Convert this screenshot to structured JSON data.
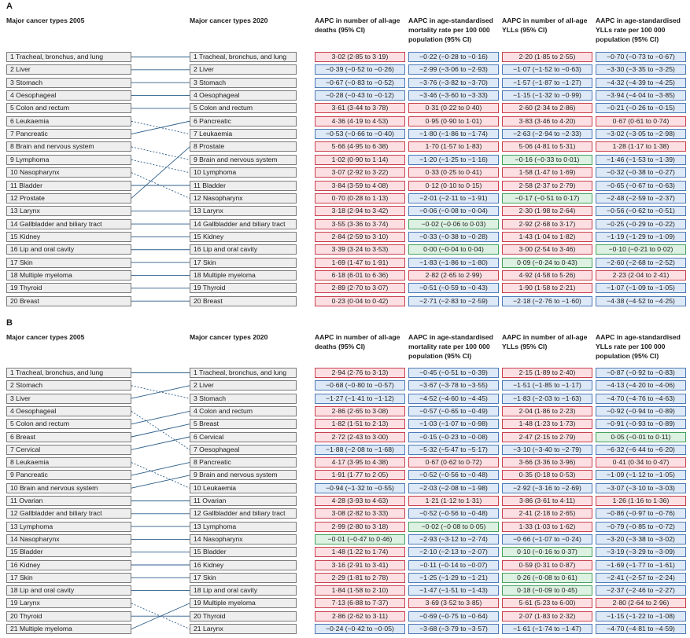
{
  "colors": {
    "red": "#fbdfe2",
    "blue": "#dde9f7",
    "green": "#dcf1e1"
  },
  "panels": [
    {
      "letter": "A",
      "left_header": "Major cancer types 2005",
      "mid_header": "Major cancer types 2020",
      "col_headers": [
        "AAPC in number of all-age deaths (95% CI)",
        "AAPC in age-standardised mortality rate per 100 000 population (95% CI)",
        "AAPC in number of all-age YLLs (95% CI)",
        "AAPC in age-standardised YLLs rate per 100 000 population (95% CI)"
      ],
      "left": [
        "1 Tracheal, bronchus, and lung",
        "2 Liver",
        "3 Stomach",
        "4 Oesophageal",
        "5 Colon and rectum",
        "6 Leukaemia",
        "7 Pancreatic",
        "8 Brain and nervous system",
        "9 Lymphoma",
        "10 Nasopharynx",
        "11 Bladder",
        "12 Prostate",
        "13 Larynx",
        "14 Gallbladder and biliary tract",
        "15 Kidney",
        "16 Lip and oral cavity",
        "17 Skin",
        "18 Multiple myeloma",
        "19 Thyroid",
        "20 Breast"
      ],
      "right": [
        "1 Tracheal, bronchus, and lung",
        "2 Liver",
        "3 Stomach",
        "4 Oesophageal",
        "5 Colon and rectum",
        "6 Pancreatic",
        "7 Leukaemia",
        "8 Prostate",
        "9 Brain and nervous system",
        "10 Lymphoma",
        "11 Bladder",
        "12 Nasopharynx",
        "13 Larynx",
        "14 Gallbladder and biliary tract",
        "15 Kidney",
        "16 Lip and oral cavity",
        "17 Skin",
        "18 Multiple myeloma",
        "19 Thyroid",
        "20 Breast"
      ],
      "links": [
        [
          1,
          1
        ],
        [
          2,
          2
        ],
        [
          3,
          3
        ],
        [
          4,
          4
        ],
        [
          5,
          5
        ],
        [
          6,
          7
        ],
        [
          7,
          6
        ],
        [
          8,
          9
        ],
        [
          9,
          10
        ],
        [
          10,
          12
        ],
        [
          11,
          11
        ],
        [
          12,
          8
        ],
        [
          13,
          13
        ],
        [
          14,
          14
        ],
        [
          15,
          15
        ],
        [
          16,
          16
        ],
        [
          17,
          17
        ],
        [
          18,
          18
        ],
        [
          19,
          19
        ],
        [
          20,
          20
        ]
      ],
      "rows": [
        [
          [
            "3·02 (2·85 to 3·19)",
            "r"
          ],
          [
            "−0·22 (−0·28 to −0·16)",
            "b"
          ],
          [
            "2·20 (1·85 to 2·55)",
            "r"
          ],
          [
            "−0·70 (−0·73 to −0·67)",
            "b"
          ]
        ],
        [
          [
            "−0·39 (−0·52 to −0·26)",
            "b"
          ],
          [
            "−2·99 (−3·06 to −2·93)",
            "b"
          ],
          [
            "−1·07 (−1·52 to −0·63)",
            "b"
          ],
          [
            "−3·30 (−3·35 to −3·25)",
            "b"
          ]
        ],
        [
          [
            "−0·67 (−0·83 to −0·52)",
            "b"
          ],
          [
            "−3·76 (−3·82 to −3·70)",
            "b"
          ],
          [
            "−1·57 (−1·87 to −1·27)",
            "b"
          ],
          [
            "−4·32 (−4·39 to −4·25)",
            "b"
          ]
        ],
        [
          [
            "−0·28 (−0·43 to −0·12)",
            "b"
          ],
          [
            "−3·46 (−3·60 to −3·33)",
            "b"
          ],
          [
            "−1·15 (−1·32 to −0·99)",
            "b"
          ],
          [
            "−3·94 (−4·04 to −3·85)",
            "b"
          ]
        ],
        [
          [
            "3·61 (3·44 to 3·78)",
            "r"
          ],
          [
            "0·31 (0·22 to 0·40)",
            "r"
          ],
          [
            "2·60 (2·34 to 2·86)",
            "r"
          ],
          [
            "−0·21 (−0·26 to −0·15)",
            "b"
          ]
        ],
        [
          [
            "4·36 (4·19 to 4·53)",
            "r"
          ],
          [
            "0·95 (0·90 to 1·01)",
            "r"
          ],
          [
            "3·83 (3·46 to 4·20)",
            "r"
          ],
          [
            "0·67 (0·61 to 0·74)",
            "r"
          ]
        ],
        [
          [
            "−0·53 (−0·66 to −0·40)",
            "b"
          ],
          [
            "−1·80 (−1·86 to −1·74)",
            "b"
          ],
          [
            "−2·63 (−2·94 to −2·33)",
            "b"
          ],
          [
            "−3·02 (−3·05 to −2·98)",
            "b"
          ]
        ],
        [
          [
            "5·66 (4·95 to 6·38)",
            "r"
          ],
          [
            "1·70 (1·57 to 1·83)",
            "r"
          ],
          [
            "5·06 (4·81 to 5·31)",
            "r"
          ],
          [
            "1·28 (1·17 to 1·38)",
            "r"
          ]
        ],
        [
          [
            "1·02 (0·90 to 1·14)",
            "r"
          ],
          [
            "−1·20 (−1·25 to −1·16)",
            "b"
          ],
          [
            "−0·16 (−0·33 to 0·01)",
            "g"
          ],
          [
            "−1·46 (−1·53 to −1·39)",
            "b"
          ]
        ],
        [
          [
            "3·07 (2·92 to 3·22)",
            "r"
          ],
          [
            "0·33 (0·25 to 0·41)",
            "r"
          ],
          [
            "1·58 (1·47 to 1·69)",
            "r"
          ],
          [
            "−0·32 (−0·38 to −0·27)",
            "b"
          ]
        ],
        [
          [
            "3·84 (3·59 to 4·08)",
            "r"
          ],
          [
            "0·12 (0·10 to 0·15)",
            "r"
          ],
          [
            "2·58 (2·37 to 2·79)",
            "r"
          ],
          [
            "−0·65 (−0·67 to −0·63)",
            "b"
          ]
        ],
        [
          [
            "0·70 (0·28 to 1·13)",
            "r"
          ],
          [
            "−2·01 (−2·11 to −1·91)",
            "b"
          ],
          [
            "−0·17 (−0·51 to 0·17)",
            "g"
          ],
          [
            "−2·48 (−2·59 to −2·37)",
            "b"
          ]
        ],
        [
          [
            "3·18 (2·94 to 3·42)",
            "r"
          ],
          [
            "−0·06 (−0·08 to −0·04)",
            "b"
          ],
          [
            "2·30 (1·98 to 2·64)",
            "r"
          ],
          [
            "−0·56 (−0·62 to −0·51)",
            "b"
          ]
        ],
        [
          [
            "3·55 (3·36 to 3·74)",
            "r"
          ],
          [
            "−0·02 (−0·06 to 0·03)",
            "g"
          ],
          [
            "2·92 (2·68 to 3·17)",
            "r"
          ],
          [
            "−0·25 (−0·29 to −0·22)",
            "b"
          ]
        ],
        [
          [
            "2·84 (2·59 to 3·10)",
            "r"
          ],
          [
            "−0·33 (−0·38 to −0·28)",
            "b"
          ],
          [
            "1·43 (1·04 to 1·82)",
            "r"
          ],
          [
            "−1·19 (−1·29 to −1·09)",
            "b"
          ]
        ],
        [
          [
            "3·39 (3·24 to 3·53)",
            "r"
          ],
          [
            "0·00 (−0·04 to 0·04)",
            "g"
          ],
          [
            "3·00 (2·54 to 3·46)",
            "r"
          ],
          [
            "−0·10 (−0·21 to 0·02)",
            "g"
          ]
        ],
        [
          [
            "1·69 (1·47 to 1·91)",
            "r"
          ],
          [
            "−1·83 (−1·86 to −1·80)",
            "b"
          ],
          [
            "0·09 (−0·24 to 0·43)",
            "g"
          ],
          [
            "−2·60 (−2·68 to −2·52)",
            "b"
          ]
        ],
        [
          [
            "6·18 (6·01 to 6·36)",
            "r"
          ],
          [
            "2·82 (2·65 to 2·99)",
            "r"
          ],
          [
            "4·92 (4·58 to 5·26)",
            "r"
          ],
          [
            "2·23 (2·04 to 2·41)",
            "r"
          ]
        ],
        [
          [
            "2·89 (2·70 to 3·07)",
            "r"
          ],
          [
            "−0·51 (−0·59 to −0·43)",
            "b"
          ],
          [
            "1·90 (1·58 to 2·21)",
            "r"
          ],
          [
            "−1·07 (−1·09 to −1·05)",
            "b"
          ]
        ],
        [
          [
            "0·23 (0·04 to 0·42)",
            "r"
          ],
          [
            "−2·71 (−2·83 to −2·59)",
            "b"
          ],
          [
            "−2·18 (−2·76 to −1·60)",
            "b"
          ],
          [
            "−4·38 (−4·52 to −4·25)",
            "b"
          ]
        ]
      ]
    },
    {
      "letter": "B",
      "left_header": "Major cancer types 2005",
      "mid_header": "Major cancer types 2020",
      "col_headers": [
        "AAPC in number of all-age deaths (95% CI)",
        "AAPC in age-standardised mortality rate per 100 000 population (95% CI)",
        "AAPC in number of all-age YLLs (95% CI)",
        "AAPC in age-standardised YLLs rate per 100 000 population (95% CI)"
      ],
      "left": [
        "1 Tracheal, bronchus, and lung",
        "2 Stomach",
        "3 Liver",
        "4 Oesophageal",
        "5 Colon and rectum",
        "6 Breast",
        "7 Cervical",
        "8 Leukaemia",
        "9 Pancreatic",
        "10 Brain and nervous system",
        "11 Ovarian",
        "12 Gallbladder and biliary tract",
        "13 Lymphoma",
        "14 Nasopharynx",
        "15 Bladder",
        "16 Kidney",
        "17 Skin",
        "18 Lip and oral cavity",
        "19 Larynx",
        "20 Thyroid",
        "21 Multiple myeloma"
      ],
      "right": [
        "1 Tracheal, bronchus, and lung",
        "2 Liver",
        "3 Stomach",
        "4 Colon and rectum",
        "5 Breast",
        "6 Cervical",
        "7 Oesophageal",
        "8 Pancreatic",
        "9 Brain and nervous system",
        "10 Leukaemia",
        "11 Ovarian",
        "12 Gallbladder and biliary tract",
        "13 Lymphoma",
        "14 Nasopharynx",
        "15 Bladder",
        "16 Kidney",
        "17 Skin",
        "18 Lip and oral cavity",
        "19 Multiple myeloma",
        "20 Thyroid",
        "21 Larynx"
      ],
      "links": [
        [
          1,
          1
        ],
        [
          2,
          3
        ],
        [
          3,
          2
        ],
        [
          4,
          7
        ],
        [
          5,
          4
        ],
        [
          6,
          5
        ],
        [
          7,
          6
        ],
        [
          8,
          10
        ],
        [
          9,
          8
        ],
        [
          10,
          9
        ],
        [
          11,
          11
        ],
        [
          12,
          12
        ],
        [
          13,
          13
        ],
        [
          14,
          14
        ],
        [
          15,
          15
        ],
        [
          16,
          16
        ],
        [
          17,
          17
        ],
        [
          18,
          18
        ],
        [
          19,
          21
        ],
        [
          20,
          20
        ],
        [
          21,
          19
        ]
      ],
      "rows": [
        [
          [
            "2·94 (2·76 to 3·13)",
            "r"
          ],
          [
            "−0·45 (−0·51 to −0·39)",
            "b"
          ],
          [
            "2·15 (1·89 to 2·40)",
            "r"
          ],
          [
            "−0·87 (−0·92 to −0·83)",
            "b"
          ]
        ],
        [
          [
            "−0·68 (−0·80 to −0·57)",
            "b"
          ],
          [
            "−3·67 (−3·78 to −3·55)",
            "b"
          ],
          [
            "−1·51 (−1·85 to −1·17)",
            "b"
          ],
          [
            "−4·13 (−4·20 to −4·06)",
            "b"
          ]
        ],
        [
          [
            "−1·27 (−1·41 to −1·12)",
            "b"
          ],
          [
            "−4·52 (−4·60 to −4·45)",
            "b"
          ],
          [
            "−1·83 (−2·03 to −1·63)",
            "b"
          ],
          [
            "−4·70 (−4·76 to −4·63)",
            "b"
          ]
        ],
        [
          [
            "2·86 (2·65 to 3·08)",
            "r"
          ],
          [
            "−0·57 (−0·65 to −0·49)",
            "b"
          ],
          [
            "2·04 (1·86 to 2·23)",
            "r"
          ],
          [
            "−0·92 (−0·94 to −0·89)",
            "b"
          ]
        ],
        [
          [
            "1·82 (1·51 to 2·13)",
            "r"
          ],
          [
            "−1·03 (−1·07 to −0·98)",
            "b"
          ],
          [
            "1·48 (1·23 to 1·73)",
            "r"
          ],
          [
            "−0·91 (−0·93 to −0·89)",
            "b"
          ]
        ],
        [
          [
            "2·72 (2·43 to 3·00)",
            "r"
          ],
          [
            "−0·15 (−0·23 to −0·08)",
            "b"
          ],
          [
            "2·47 (2·15 to 2·79)",
            "r"
          ],
          [
            "0·05 (−0·01 to 0·11)",
            "g"
          ]
        ],
        [
          [
            "−1·88 (−2·08 to −1·68)",
            "b"
          ],
          [
            "−5·32 (−5·47 to −5·17)",
            "b"
          ],
          [
            "−3·10 (−3·40 to −2·79)",
            "b"
          ],
          [
            "−6·32 (−6·44 to −6·20)",
            "b"
          ]
        ],
        [
          [
            "4·17 (3·95 to 4·38)",
            "r"
          ],
          [
            "0·67 (0·62 to 0·72)",
            "r"
          ],
          [
            "3·66 (3·36 to 3·96)",
            "r"
          ],
          [
            "0·41 (0·34 to 0·47)",
            "r"
          ]
        ],
        [
          [
            "1·91 (1·77 to 2·05)",
            "r"
          ],
          [
            "−0·52 (−0·56 to −0·48)",
            "b"
          ],
          [
            "0·35 (0·18 to 0·53)",
            "r"
          ],
          [
            "−1·09 (−1·12 to −1·05)",
            "b"
          ]
        ],
        [
          [
            "−0·94 (−1·32 to −0·55)",
            "b"
          ],
          [
            "−2·03 (−2·08 to −1·98)",
            "b"
          ],
          [
            "−2·92 (−3·16 to −2·69)",
            "b"
          ],
          [
            "−3·07 (−3·10 to −3·03)",
            "b"
          ]
        ],
        [
          [
            "4·28 (3·93 to 4·63)",
            "r"
          ],
          [
            "1·21 (1·12 to 1·31)",
            "r"
          ],
          [
            "3·86 (3·61 to 4·11)",
            "r"
          ],
          [
            "1·26 (1·16 to 1·36)",
            "r"
          ]
        ],
        [
          [
            "3·08 (2·82 to 3·33)",
            "r"
          ],
          [
            "−0·52 (−0·56 to −0·48)",
            "b"
          ],
          [
            "2·41 (2·18 to 2·65)",
            "r"
          ],
          [
            "−0·86 (−0·97 to −0·76)",
            "b"
          ]
        ],
        [
          [
            "2·99 (2·80 to 3·18)",
            "r"
          ],
          [
            "−0·02 (−0·08 to 0·05)",
            "g"
          ],
          [
            "1·33 (1·03 to 1·62)",
            "r"
          ],
          [
            "−0·79 (−0·85 to −0·72)",
            "b"
          ]
        ],
        [
          [
            "−0·01 (−0·47 to 0·46)",
            "g"
          ],
          [
            "−2·93 (−3·12 to −2·74)",
            "b"
          ],
          [
            "−0·66 (−1·07 to −0·24)",
            "b"
          ],
          [
            "−3·20 (−3·38 to −3·02)",
            "b"
          ]
        ],
        [
          [
            "1·48 (1·22 to 1·74)",
            "r"
          ],
          [
            "−2·10 (−2·13 to −2·07)",
            "b"
          ],
          [
            "0·10 (−0·16 to 0·37)",
            "g"
          ],
          [
            "−3·19 (−3·29 to −3·09)",
            "b"
          ]
        ],
        [
          [
            "3·16 (2·91 to 3·41)",
            "r"
          ],
          [
            "−0·11 (−0·14 to −0·07)",
            "b"
          ],
          [
            "0·59 (0·31 to 0·87)",
            "r"
          ],
          [
            "−1·69 (−1·77 to −1·61)",
            "b"
          ]
        ],
        [
          [
            "2·29 (1·81 to 2·78)",
            "r"
          ],
          [
            "−1·25 (−1·29 to −1·21)",
            "b"
          ],
          [
            "0·26 (−0·08 to 0·61)",
            "g"
          ],
          [
            "−2·41 (−2·57 to −2·24)",
            "b"
          ]
        ],
        [
          [
            "1·84 (1·58 to 2·10)",
            "r"
          ],
          [
            "−1·47 (−1·51 to −1·43)",
            "b"
          ],
          [
            "0·18 (−0·09 to 0·45)",
            "g"
          ],
          [
            "−2·37 (−2·46 to −2·27)",
            "b"
          ]
        ],
        [
          [
            "7·13 (6·88 to 7·37)",
            "r"
          ],
          [
            "3·69 (3·52 to 3·85)",
            "r"
          ],
          [
            "5·61 (5·23 to 6·00)",
            "r"
          ],
          [
            "2·80 (2·64 to 2·96)",
            "r"
          ]
        ],
        [
          [
            "2·86 (2·62 to 3·11)",
            "r"
          ],
          [
            "−0·69 (−0·75 to −0·64)",
            "b"
          ],
          [
            "2·07 (1·83 to 2·32)",
            "r"
          ],
          [
            "−1·15 (−1·22 to −1·08)",
            "b"
          ]
        ],
        [
          [
            "−0·24 (−0·42 to −0·05)",
            "b"
          ],
          [
            "−3·68 (−3·79 to −3·57)",
            "b"
          ],
          [
            "−1·61 (−1·74 to −1·47)",
            "b"
          ],
          [
            "−4·70 (−4·81 to −4·59)",
            "b"
          ]
        ]
      ]
    }
  ]
}
